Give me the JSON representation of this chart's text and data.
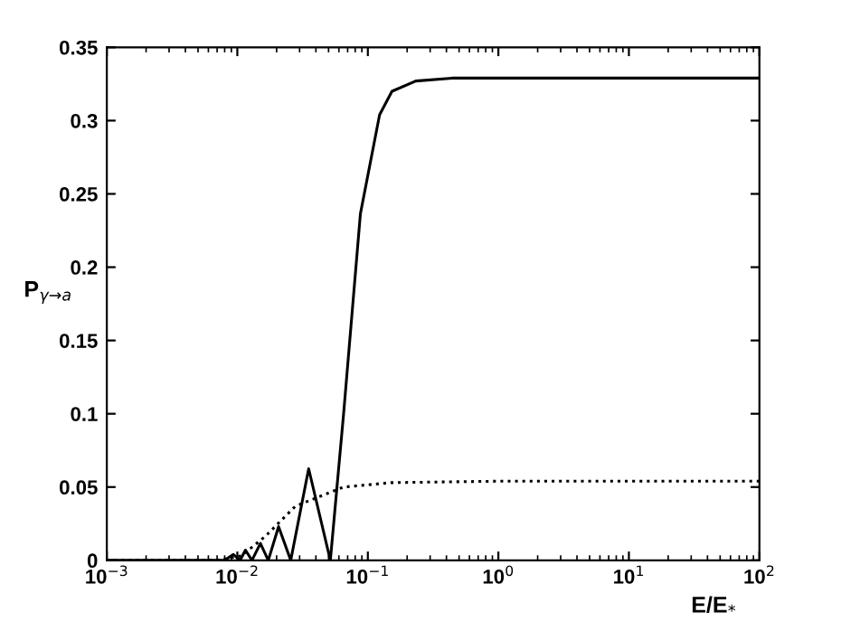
{
  "chart_data": {
    "type": "line",
    "xlabel": "E/E$_{*}$",
    "ylabel": "P$_{γ→a}$",
    "log": "x",
    "xlim": [
      0.001,
      100
    ],
    "ylim": [
      0,
      0.35
    ],
    "xticks": [
      {
        "value": 0.001,
        "label": "10$^{−3}$"
      },
      {
        "value": 0.01,
        "label": "10$^{−2}$"
      },
      {
        "value": 0.1,
        "label": "10$^{−1}$"
      },
      {
        "value": 1,
        "label": "10$^{0}$"
      },
      {
        "value": 10,
        "label": "10$^{1}$"
      },
      {
        "value": 100,
        "label": "10$^{2}$"
      }
    ],
    "yticks": [
      0,
      0.05,
      0.1,
      0.15,
      0.2,
      0.25,
      0.3,
      0.35
    ],
    "grid": false,
    "legend": false,
    "series": [
      {
        "color": "#000000",
        "line_style": "solid",
        "x": [
          0.001,
          0.008,
          0.00932,
          0.0105,
          0.01154,
          0.01294,
          0.01503,
          0.01726,
          0.0207,
          0.02566,
          0.0352,
          0.0516,
          0.058,
          0.0652,
          0.0877,
          0.123,
          0.153,
          0.233,
          0.44,
          1,
          100
        ],
        "values": [
          0,
          0,
          0.004,
          0,
          0.007,
          0,
          0.0115,
          0,
          0.023,
          0,
          0.0625,
          0,
          0.05,
          0.1,
          0.2365,
          0.304,
          0.32,
          0.327,
          0.329,
          0.329,
          0.329
        ]
      },
      {
        "color": "#000000",
        "line_style": "dotted",
        "x": [
          0.001,
          0.007,
          0.0107,
          0.0164,
          0.0279,
          0.0652,
          0.15,
          1,
          100
        ],
        "values": [
          0,
          0,
          0.003,
          0.0164,
          0.037,
          0.05,
          0.053,
          0.054,
          0.054
        ]
      }
    ]
  }
}
